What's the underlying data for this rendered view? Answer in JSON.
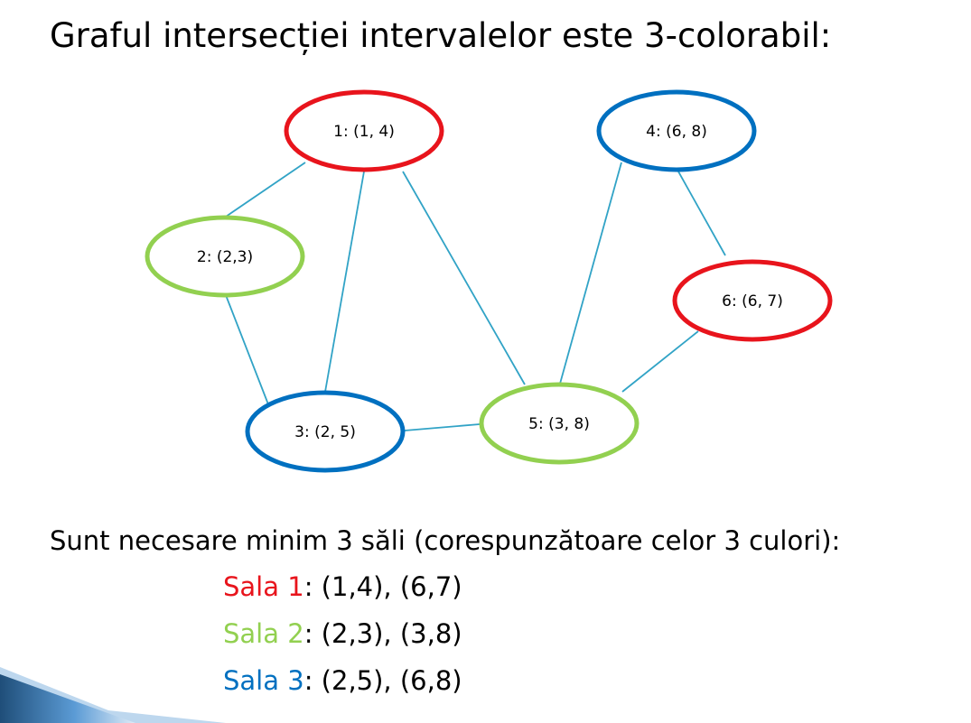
{
  "title": "Graful intersecției intervalelor este 3-colorabil:",
  "colors": {
    "red": "#e8141c",
    "green": "#92d050",
    "blue": "#0070c0",
    "edge": "#31a3c6"
  },
  "graph": {
    "nodes": [
      {
        "id": "1",
        "label": "1: (1, 4)",
        "color": "red"
      },
      {
        "id": "2",
        "label": "2: (2,3)",
        "color": "green"
      },
      {
        "id": "3",
        "label": "3: (2, 5)",
        "color": "blue"
      },
      {
        "id": "4",
        "label": "4: (6, 8)",
        "color": "blue"
      },
      {
        "id": "5",
        "label": "5: (3, 8)",
        "color": "green"
      },
      {
        "id": "6",
        "label": "6: (6, 7)",
        "color": "red"
      }
    ],
    "edges": [
      [
        "1",
        "2"
      ],
      [
        "1",
        "3"
      ],
      [
        "1",
        "5"
      ],
      [
        "2",
        "3"
      ],
      [
        "3",
        "5"
      ],
      [
        "4",
        "5"
      ],
      [
        "4",
        "6"
      ],
      [
        "5",
        "6"
      ]
    ]
  },
  "subtitle": "Sunt necesare minim 3 săli (corespunzătoare celor 3 culori):",
  "rooms": [
    {
      "name": "Sala 1",
      "color": "red",
      "intervals": ": (1,4),  (6,7)"
    },
    {
      "name": "Sala 2",
      "color": "green",
      "intervals": ": (2,3),  (3,8)"
    },
    {
      "name": "Sala 3",
      "color": "blue",
      "intervals": ": (2,5),  (6,8)"
    }
  ]
}
